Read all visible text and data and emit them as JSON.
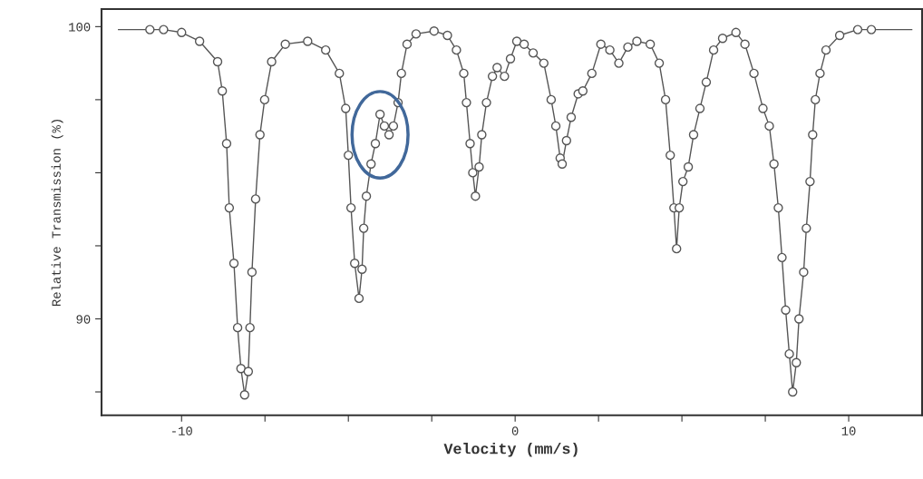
{
  "chart_data": {
    "type": "scatter",
    "xlabel": "Velocity (mm/s)",
    "ylabel": "Relative Transmission (%)",
    "xlim": [
      -12.4,
      12.2
    ],
    "ylim": [
      86.7,
      100.6
    ],
    "xticks": [
      -10,
      {
        "value": -7.5,
        "label": null
      },
      {
        "value": -5,
        "label": null
      },
      {
        "value": -2.5,
        "label": null
      },
      0,
      {
        "value": 2.5,
        "label": null
      },
      {
        "value": 5,
        "label": null
      },
      {
        "value": 7.5,
        "label": null
      },
      10
    ],
    "yticks": [
      {
        "value": 87.5,
        "label": null
      },
      90,
      {
        "value": 92.5,
        "label": null
      },
      {
        "value": 95,
        "label": null
      },
      {
        "value": 97.5,
        "label": null
      },
      100
    ],
    "grid": false,
    "series": [
      {
        "type": "line",
        "color": "#555555",
        "marker": "none",
        "line_style": "solid",
        "x": [
          -11.89,
          -10.95,
          -10.54,
          -10.0,
          -9.46,
          -8.92,
          -8.78,
          -8.65,
          -8.57,
          -8.43,
          -8.32,
          -8.22,
          -8.11,
          -8.0,
          -7.95,
          -7.89,
          -7.78,
          -7.65,
          -7.51,
          -7.3,
          -6.89,
          -6.22,
          -5.68,
          -5.27,
          -5.08,
          -5.0,
          -4.92,
          -4.81,
          -4.68,
          -4.59,
          -4.54,
          -4.46,
          -4.32,
          -4.19,
          -4.05,
          -3.92,
          -3.78,
          -3.65,
          -3.51,
          -3.41,
          -3.24,
          -2.97,
          -2.43,
          -2.03,
          -1.76,
          -1.54,
          -1.46,
          -1.35,
          -1.27,
          -1.19,
          -1.08,
          -1.0,
          -0.86,
          -0.68,
          -0.54,
          -0.32,
          -0.14,
          0.05,
          0.27,
          0.54,
          0.86,
          1.08,
          1.22,
          1.35,
          1.41,
          1.54,
          1.68,
          1.89,
          2.03,
          2.3,
          2.57,
          2.84,
          3.11,
          3.38,
          3.65,
          4.05,
          4.32,
          4.51,
          4.65,
          4.76,
          4.84,
          4.92,
          5.03,
          5.19,
          5.35,
          5.54,
          5.73,
          5.95,
          6.22,
          6.62,
          6.89,
          7.16,
          7.43,
          7.62,
          7.76,
          7.89,
          8.0,
          8.11,
          8.22,
          8.32,
          8.43,
          8.51,
          8.65,
          8.73,
          8.84,
          8.92,
          9.0,
          9.14,
          9.32,
          9.73,
          10.27,
          10.68,
          11.89
        ],
        "values": [
          99.9,
          99.9,
          99.9,
          99.8,
          99.5,
          98.8,
          97.8,
          96.0,
          93.8,
          91.9,
          89.7,
          88.3,
          87.4,
          88.2,
          89.7,
          91.6,
          94.1,
          96.3,
          97.5,
          98.8,
          99.4,
          99.5,
          99.2,
          98.4,
          97.2,
          95.6,
          93.8,
          91.9,
          90.7,
          91.7,
          93.1,
          94.2,
          95.3,
          96.0,
          97.0,
          96.6,
          96.3,
          96.6,
          97.4,
          98.4,
          99.4,
          99.75,
          99.85,
          99.7,
          99.2,
          98.4,
          97.4,
          96.0,
          95.0,
          94.2,
          95.2,
          96.3,
          97.4,
          98.3,
          98.6,
          98.3,
          98.9,
          99.5,
          99.4,
          99.1,
          98.75,
          97.5,
          96.6,
          95.5,
          95.3,
          96.1,
          96.9,
          97.7,
          97.8,
          98.4,
          99.4,
          99.2,
          98.75,
          99.3,
          99.5,
          99.4,
          98.75,
          97.5,
          95.6,
          93.8,
          92.4,
          93.8,
          94.7,
          95.2,
          96.3,
          97.2,
          98.1,
          99.2,
          99.6,
          99.8,
          99.4,
          98.4,
          97.2,
          96.6,
          95.3,
          93.8,
          92.1,
          90.3,
          88.8,
          87.5,
          88.5,
          90.0,
          91.6,
          93.1,
          94.7,
          96.3,
          97.5,
          98.4,
          99.2,
          99.7,
          99.9,
          99.9,
          99.9
        ]
      },
      {
        "color": "#555555",
        "marker": "circle",
        "x": [
          -10.95,
          -10.54,
          -10.0,
          -9.46,
          -8.92,
          -8.78,
          -8.65,
          -8.57,
          -8.43,
          -8.32,
          -8.22,
          -8.11,
          -8.0,
          -7.95,
          -7.89,
          -7.78,
          -7.65,
          -7.51,
          -7.3,
          -6.89,
          -6.22,
          -5.68,
          -5.27,
          -5.08,
          -5.0,
          -4.92,
          -4.81,
          -4.68,
          -4.59,
          -4.54,
          -4.46,
          -4.32,
          -4.19,
          -4.05,
          -3.92,
          -3.78,
          -3.65,
          -3.51,
          -3.41,
          -3.24,
          -2.97,
          -2.43,
          -2.03,
          -1.76,
          -1.54,
          -1.46,
          -1.35,
          -1.27,
          -1.19,
          -1.08,
          -1.0,
          -0.86,
          -0.68,
          -0.54,
          -0.32,
          -0.14,
          0.05,
          0.27,
          0.54,
          0.86,
          1.08,
          1.22,
          1.35,
          1.41,
          1.54,
          1.68,
          1.89,
          2.03,
          2.3,
          2.57,
          2.84,
          3.11,
          3.38,
          3.65,
          4.05,
          4.32,
          4.51,
          4.65,
          4.76,
          4.84,
          4.92,
          5.03,
          5.19,
          5.35,
          5.54,
          5.73,
          5.95,
          6.22,
          6.62,
          6.89,
          7.16,
          7.43,
          7.62,
          7.76,
          7.89,
          8.0,
          8.11,
          8.22,
          8.32,
          8.43,
          8.51,
          8.65,
          8.73,
          8.84,
          8.92,
          9.0,
          9.14,
          9.32,
          9.73,
          10.27,
          10.68
        ],
        "values": [
          99.9,
          99.9,
          99.8,
          99.5,
          98.8,
          97.8,
          96.0,
          93.8,
          91.9,
          89.7,
          88.3,
          87.4,
          88.2,
          89.7,
          91.6,
          94.1,
          96.3,
          97.5,
          98.8,
          99.4,
          99.5,
          99.2,
          98.4,
          97.2,
          95.6,
          93.8,
          91.9,
          90.7,
          91.7,
          93.1,
          94.2,
          95.3,
          96.0,
          97.0,
          96.6,
          96.3,
          96.6,
          97.4,
          98.4,
          99.4,
          99.75,
          99.85,
          99.7,
          99.2,
          98.4,
          97.4,
          96.0,
          95.0,
          94.2,
          95.2,
          96.3,
          97.4,
          98.3,
          98.6,
          98.3,
          98.9,
          99.5,
          99.4,
          99.1,
          98.75,
          97.5,
          96.6,
          95.5,
          95.3,
          96.1,
          96.9,
          97.7,
          97.8,
          98.4,
          99.4,
          99.2,
          98.75,
          99.3,
          99.5,
          99.4,
          98.75,
          97.5,
          95.6,
          93.8,
          92.4,
          93.8,
          94.7,
          95.2,
          96.3,
          97.2,
          98.1,
          99.2,
          99.6,
          99.8,
          99.4,
          98.4,
          97.2,
          96.6,
          95.3,
          93.8,
          92.1,
          90.3,
          88.8,
          87.5,
          88.5,
          90.0,
          91.6,
          93.1,
          94.7,
          96.3,
          97.5,
          98.4,
          99.2,
          99.7,
          99.9,
          99.9
        ]
      }
    ]
  }
}
